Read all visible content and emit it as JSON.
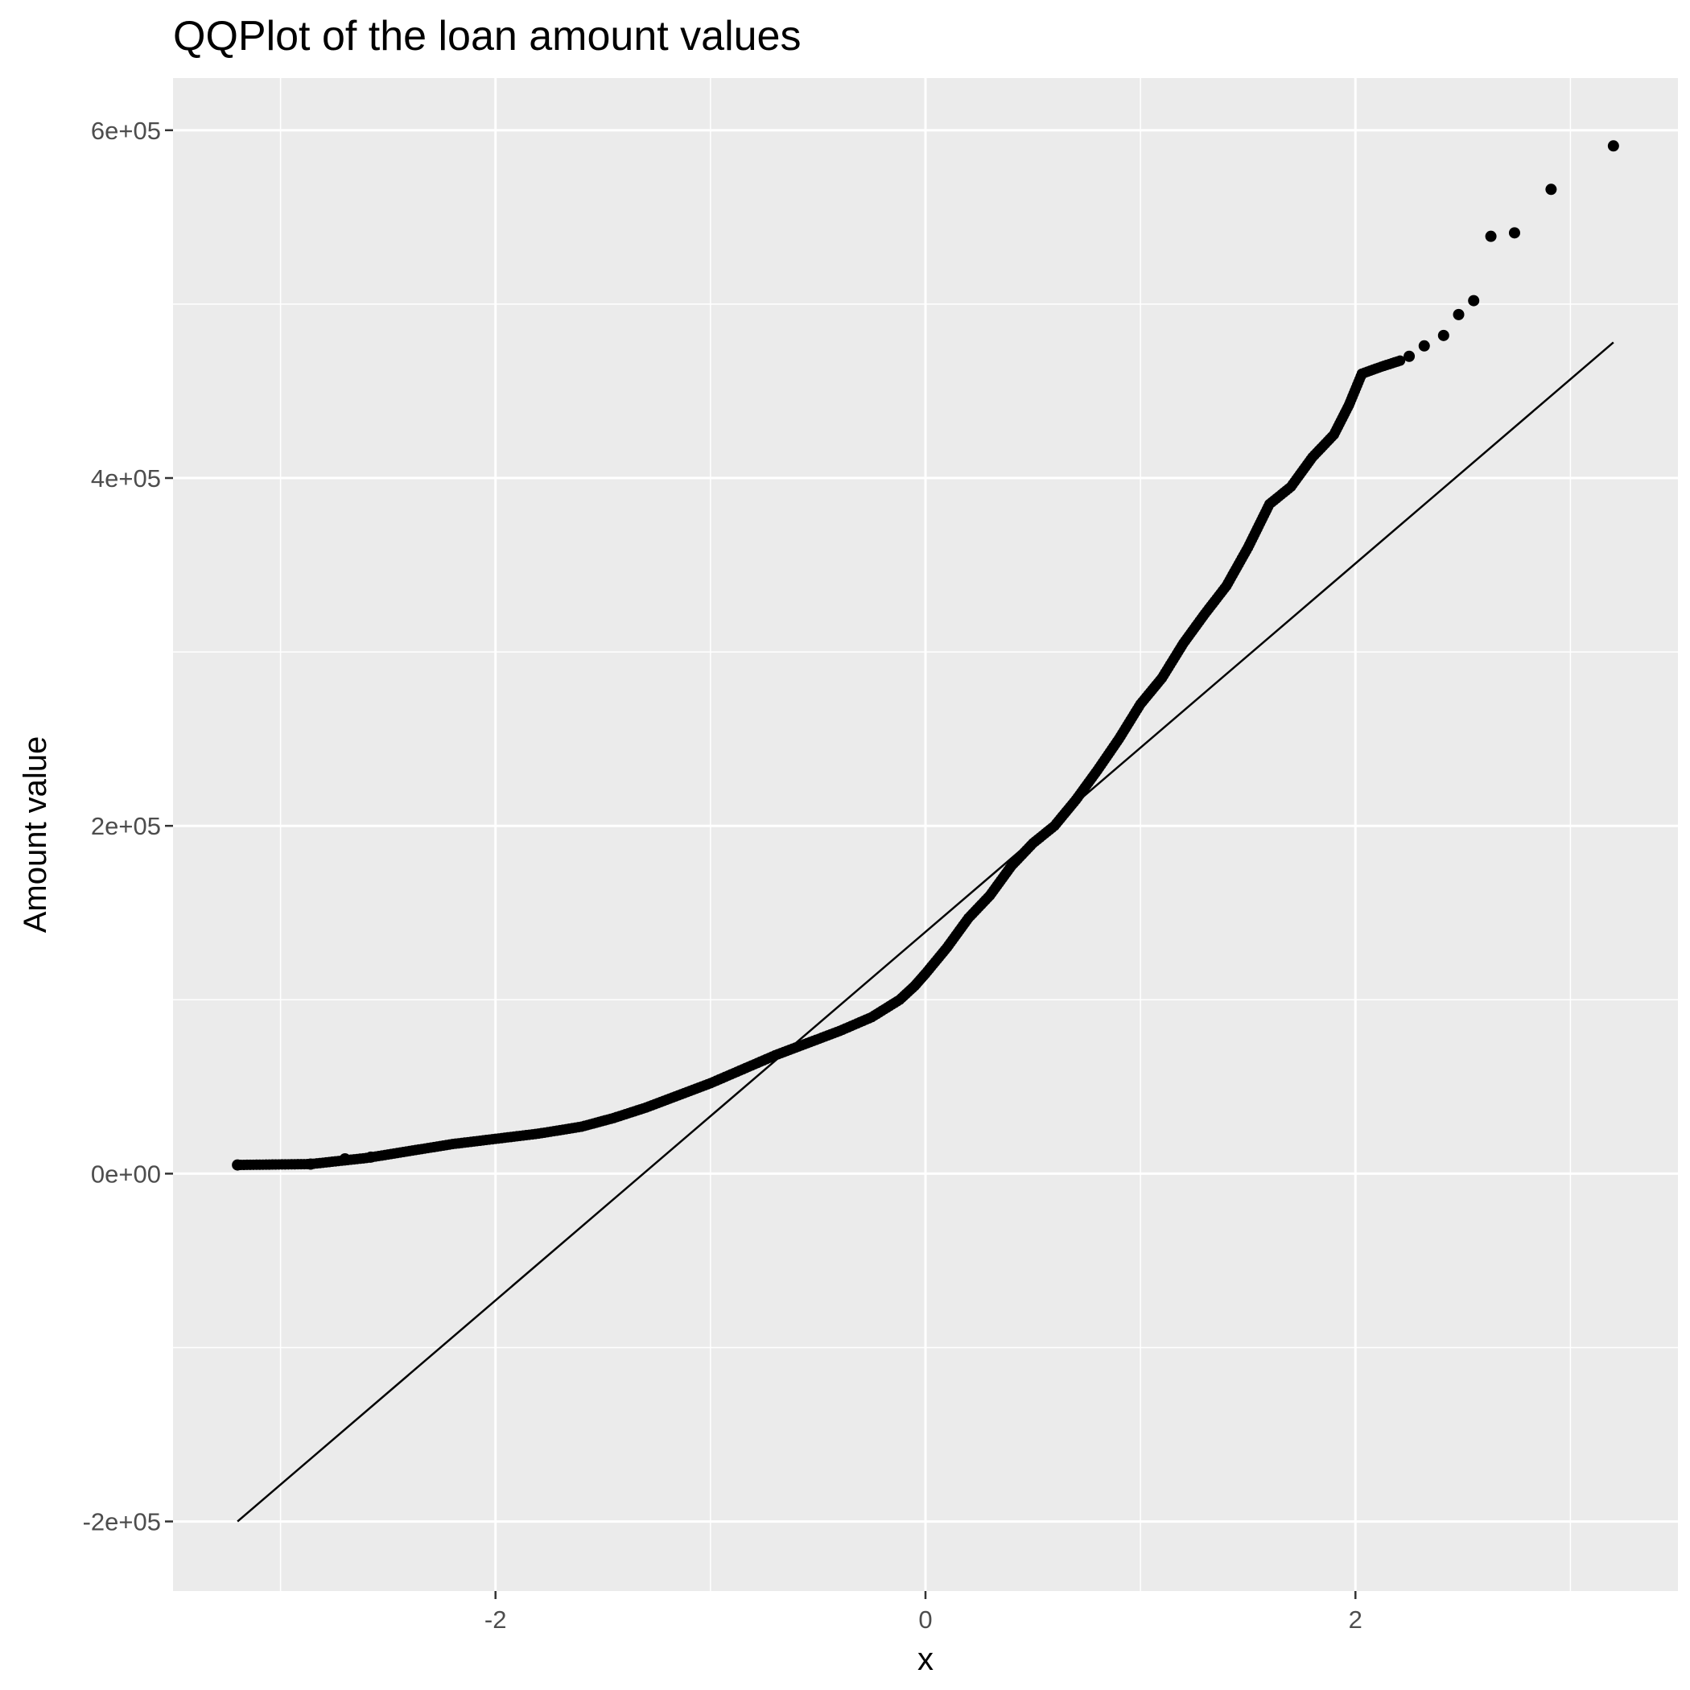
{
  "chart_data": {
    "type": "scatter",
    "title": "QQPlot of the loan amount values",
    "xlabel": "x",
    "ylabel": "Amount value",
    "xlim": [
      -3.5,
      3.5
    ],
    "ylim": [
      -240000,
      630000
    ],
    "x_ticks": [
      -2,
      0,
      2
    ],
    "x_tick_labels": [
      "-2",
      "0",
      "2"
    ],
    "y_ticks": [
      -200000,
      0,
      200000,
      400000,
      600000
    ],
    "y_tick_labels": [
      "-2e+05",
      "0e+00",
      "2e+05",
      "4e+05",
      "6e+05"
    ],
    "grid": true,
    "background": "#ebebeb",
    "point_color": "#000000",
    "reference_line": {
      "x": [
        -3.2,
        3.2
      ],
      "y": [
        -200000,
        478000
      ]
    },
    "quantile_curve": [
      [
        -3.2,
        5000
      ],
      [
        -2.86,
        5500
      ],
      [
        -2.6,
        9000
      ],
      [
        -2.4,
        13000
      ],
      [
        -2.2,
        17000
      ],
      [
        -2.0,
        20000
      ],
      [
        -1.8,
        23000
      ],
      [
        -1.6,
        27000
      ],
      [
        -1.45,
        32000
      ],
      [
        -1.3,
        38000
      ],
      [
        -1.15,
        45000
      ],
      [
        -1.0,
        52000
      ],
      [
        -0.85,
        60000
      ],
      [
        -0.7,
        68000
      ],
      [
        -0.55,
        75000
      ],
      [
        -0.4,
        82000
      ],
      [
        -0.25,
        90000
      ],
      [
        -0.12,
        100000
      ],
      [
        -0.05,
        108000
      ],
      [
        0.0,
        115000
      ],
      [
        0.1,
        130000
      ],
      [
        0.2,
        147000
      ],
      [
        0.3,
        160000
      ],
      [
        0.4,
        177000
      ],
      [
        0.5,
        190000
      ],
      [
        0.6,
        200000
      ],
      [
        0.7,
        215000
      ],
      [
        0.8,
        232000
      ],
      [
        0.9,
        250000
      ],
      [
        1.0,
        270000
      ],
      [
        1.1,
        285000
      ],
      [
        1.2,
        305000
      ],
      [
        1.3,
        322000
      ],
      [
        1.4,
        338000
      ],
      [
        1.5,
        360000
      ],
      [
        1.6,
        385000
      ],
      [
        1.7,
        395000
      ],
      [
        1.8,
        412000
      ],
      [
        1.9,
        425000
      ],
      [
        1.97,
        442000
      ],
      [
        2.03,
        460000
      ],
      [
        2.12,
        464000
      ],
      [
        2.22,
        468000
      ]
    ],
    "tail_points": [
      [
        -3.2,
        5000
      ],
      [
        -2.86,
        5500
      ],
      [
        -2.7,
        8500
      ],
      [
        -2.58,
        9500
      ],
      [
        2.25,
        470000
      ],
      [
        2.32,
        476000
      ],
      [
        2.41,
        482000
      ],
      [
        2.48,
        494000
      ],
      [
        2.55,
        502000
      ],
      [
        2.63,
        539000
      ],
      [
        2.74,
        541000
      ],
      [
        2.91,
        566000
      ],
      [
        3.2,
        591000
      ]
    ]
  }
}
